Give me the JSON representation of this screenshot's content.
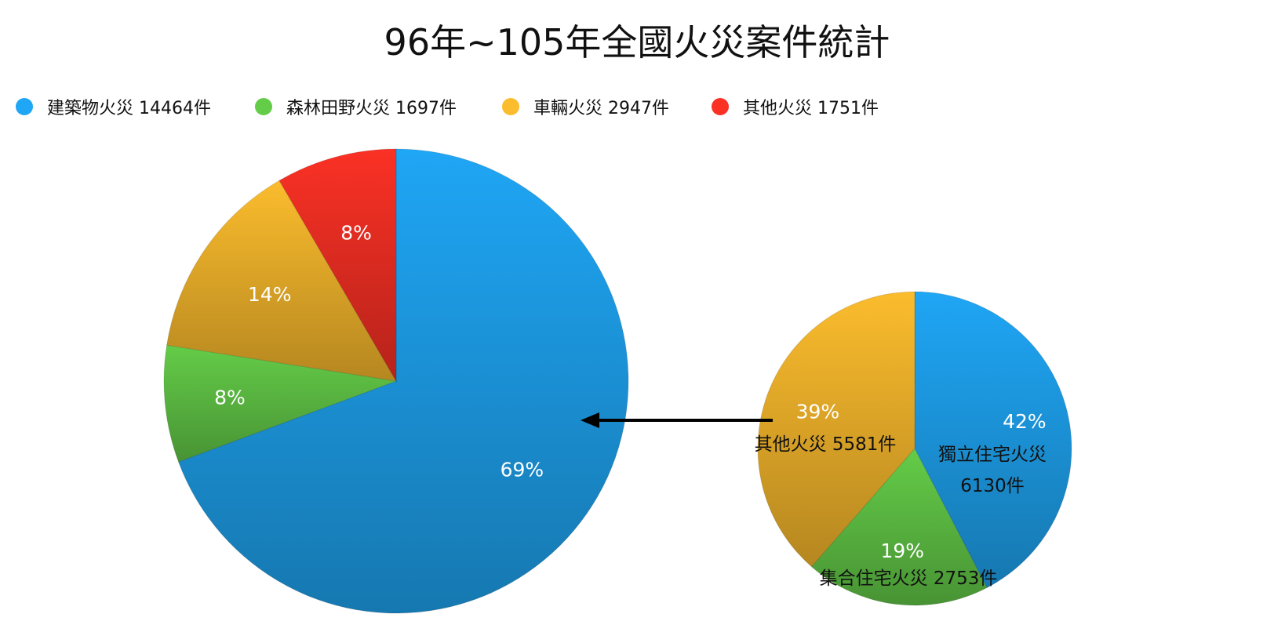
{
  "title": "96年~105年全國火災案件統計",
  "legend": [
    {
      "label": "建築物火災 14464件",
      "color": "#1fa6f5"
    },
    {
      "label": "森林田野火災 1697件",
      "color": "#64cc48"
    },
    {
      "label": "車輛火災 2947件",
      "color": "#fbbc2d"
    },
    {
      "label": "其他火災 1751件",
      "color": "#fb3125"
    }
  ],
  "chart_data": [
    {
      "type": "pie",
      "title": "96年~105年全國火災案件統計",
      "slices": [
        {
          "name": "建築物火災",
          "value": 14464,
          "percent_label": "69%",
          "color": "#1fa6f5"
        },
        {
          "name": "森林田野火災",
          "value": 1697,
          "percent_label": "8%",
          "color": "#64cc48"
        },
        {
          "name": "車輛火災",
          "value": 2947,
          "percent_label": "14%",
          "color": "#fbbc2d"
        },
        {
          "name": "其他火災",
          "value": 1751,
          "percent_label": "8%",
          "color": "#fb3125"
        }
      ],
      "legend_position": "top-left"
    },
    {
      "type": "pie",
      "slices": [
        {
          "name": "獨立住宅火災",
          "value": 6130,
          "percent_label": "42%",
          "label_line1": "獨立住宅火災",
          "label_line2": "6130件",
          "color": "#1fa6f5"
        },
        {
          "name": "集合住宅火災",
          "value": 2753,
          "percent_label": "19%",
          "label_line1": "集合住宅火災 2753件",
          "color": "#64cc48"
        },
        {
          "name": "其他火災",
          "value": 5581,
          "percent_label": "39%",
          "label_line1": "其他火災 5581件",
          "color": "#fbbc2d"
        }
      ]
    }
  ]
}
